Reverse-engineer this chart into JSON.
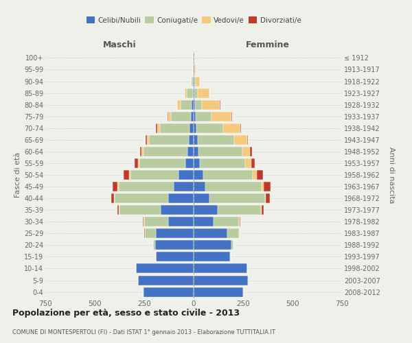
{
  "age_groups": [
    "0-4",
    "5-9",
    "10-14",
    "15-19",
    "20-24",
    "25-29",
    "30-34",
    "35-39",
    "40-44",
    "45-49",
    "50-54",
    "55-59",
    "60-64",
    "65-69",
    "70-74",
    "75-79",
    "80-84",
    "85-89",
    "90-94",
    "95-99",
    "100+"
  ],
  "birth_years": [
    "2008-2012",
    "2003-2007",
    "1998-2002",
    "1993-1997",
    "1988-1992",
    "1983-1987",
    "1978-1982",
    "1973-1977",
    "1968-1972",
    "1963-1967",
    "1958-1962",
    "1953-1957",
    "1948-1952",
    "1943-1947",
    "1938-1942",
    "1933-1937",
    "1928-1932",
    "1923-1927",
    "1918-1922",
    "1913-1917",
    "≤ 1912"
  ],
  "males": {
    "celibi": [
      255,
      280,
      290,
      190,
      195,
      190,
      130,
      165,
      130,
      100,
      75,
      40,
      30,
      25,
      20,
      15,
      10,
      5,
      4,
      2,
      2
    ],
    "coniugati": [
      2,
      2,
      2,
      2,
      10,
      55,
      120,
      210,
      270,
      280,
      245,
      235,
      225,
      200,
      150,
      100,
      55,
      30,
      8,
      3,
      0
    ],
    "vedovi": [
      0,
      0,
      0,
      0,
      0,
      2,
      2,
      2,
      3,
      5,
      5,
      5,
      8,
      12,
      15,
      15,
      18,
      10,
      2,
      0,
      0
    ],
    "divorziati": [
      0,
      0,
      0,
      0,
      0,
      2,
      5,
      8,
      15,
      25,
      30,
      20,
      8,
      5,
      5,
      2,
      0,
      0,
      0,
      0,
      0
    ]
  },
  "females": {
    "nubili": [
      250,
      275,
      270,
      185,
      190,
      170,
      100,
      120,
      80,
      60,
      50,
      30,
      25,
      20,
      15,
      10,
      8,
      5,
      5,
      3,
      2
    ],
    "coniugate": [
      2,
      2,
      2,
      2,
      12,
      60,
      130,
      220,
      280,
      285,
      250,
      230,
      220,
      185,
      135,
      80,
      35,
      15,
      5,
      2,
      0
    ],
    "vedove": [
      0,
      0,
      0,
      0,
      0,
      2,
      2,
      3,
      5,
      10,
      20,
      30,
      40,
      65,
      85,
      100,
      90,
      60,
      20,
      5,
      0
    ],
    "divorziate": [
      0,
      0,
      0,
      0,
      0,
      2,
      5,
      10,
      20,
      35,
      30,
      20,
      10,
      5,
      5,
      5,
      2,
      0,
      0,
      0,
      0
    ]
  },
  "colors": {
    "celibi": "#4472c4",
    "coniugati": "#b8cca0",
    "vedovi": "#f5c97e",
    "divorziati": "#c0392b"
  },
  "xlim": 750,
  "title": "Popolazione per età, sesso e stato civile - 2013",
  "subtitle": "COMUNE DI MONTESPERTOLI (FI) - Dati ISTAT 1° gennaio 2013 - Elaborazione TUTTITALIA.IT",
  "ylabel_left": "Fasce di età",
  "ylabel_right": "Anni di nascita",
  "xlabel_left": "Maschi",
  "xlabel_right": "Femmine",
  "bg_color": "#f0f0eb",
  "grid_color": "#cccccc"
}
